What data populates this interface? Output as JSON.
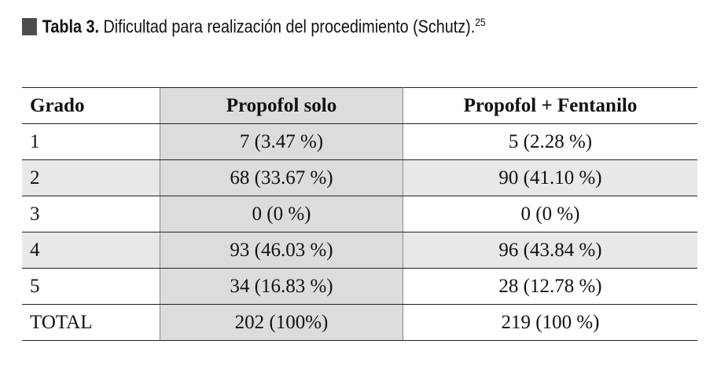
{
  "title": {
    "label": "Tabla 3.",
    "text": "Dificultad para realización del procedimiento (Schutz).",
    "ref": "25"
  },
  "table": {
    "header": [
      "Grado",
      "Propofol solo",
      "Propofol  +  Fentanilo"
    ],
    "rows": [
      [
        "1",
        "7 (3.47 %)",
        "5 (2.28 %)"
      ],
      [
        "2",
        "68 (33.67 %)",
        "90 (41.10 %)"
      ],
      [
        "3",
        "0 (0 %)",
        "0 (0 %)"
      ],
      [
        "4",
        "93 (46.03 %)",
        "96 (43.84 %)"
      ],
      [
        "5",
        "34 (16.83 %)",
        "28 (12.78 %)"
      ],
      [
        "TOTAL",
        "202 (100%)",
        "219 (100 %)"
      ]
    ]
  }
}
